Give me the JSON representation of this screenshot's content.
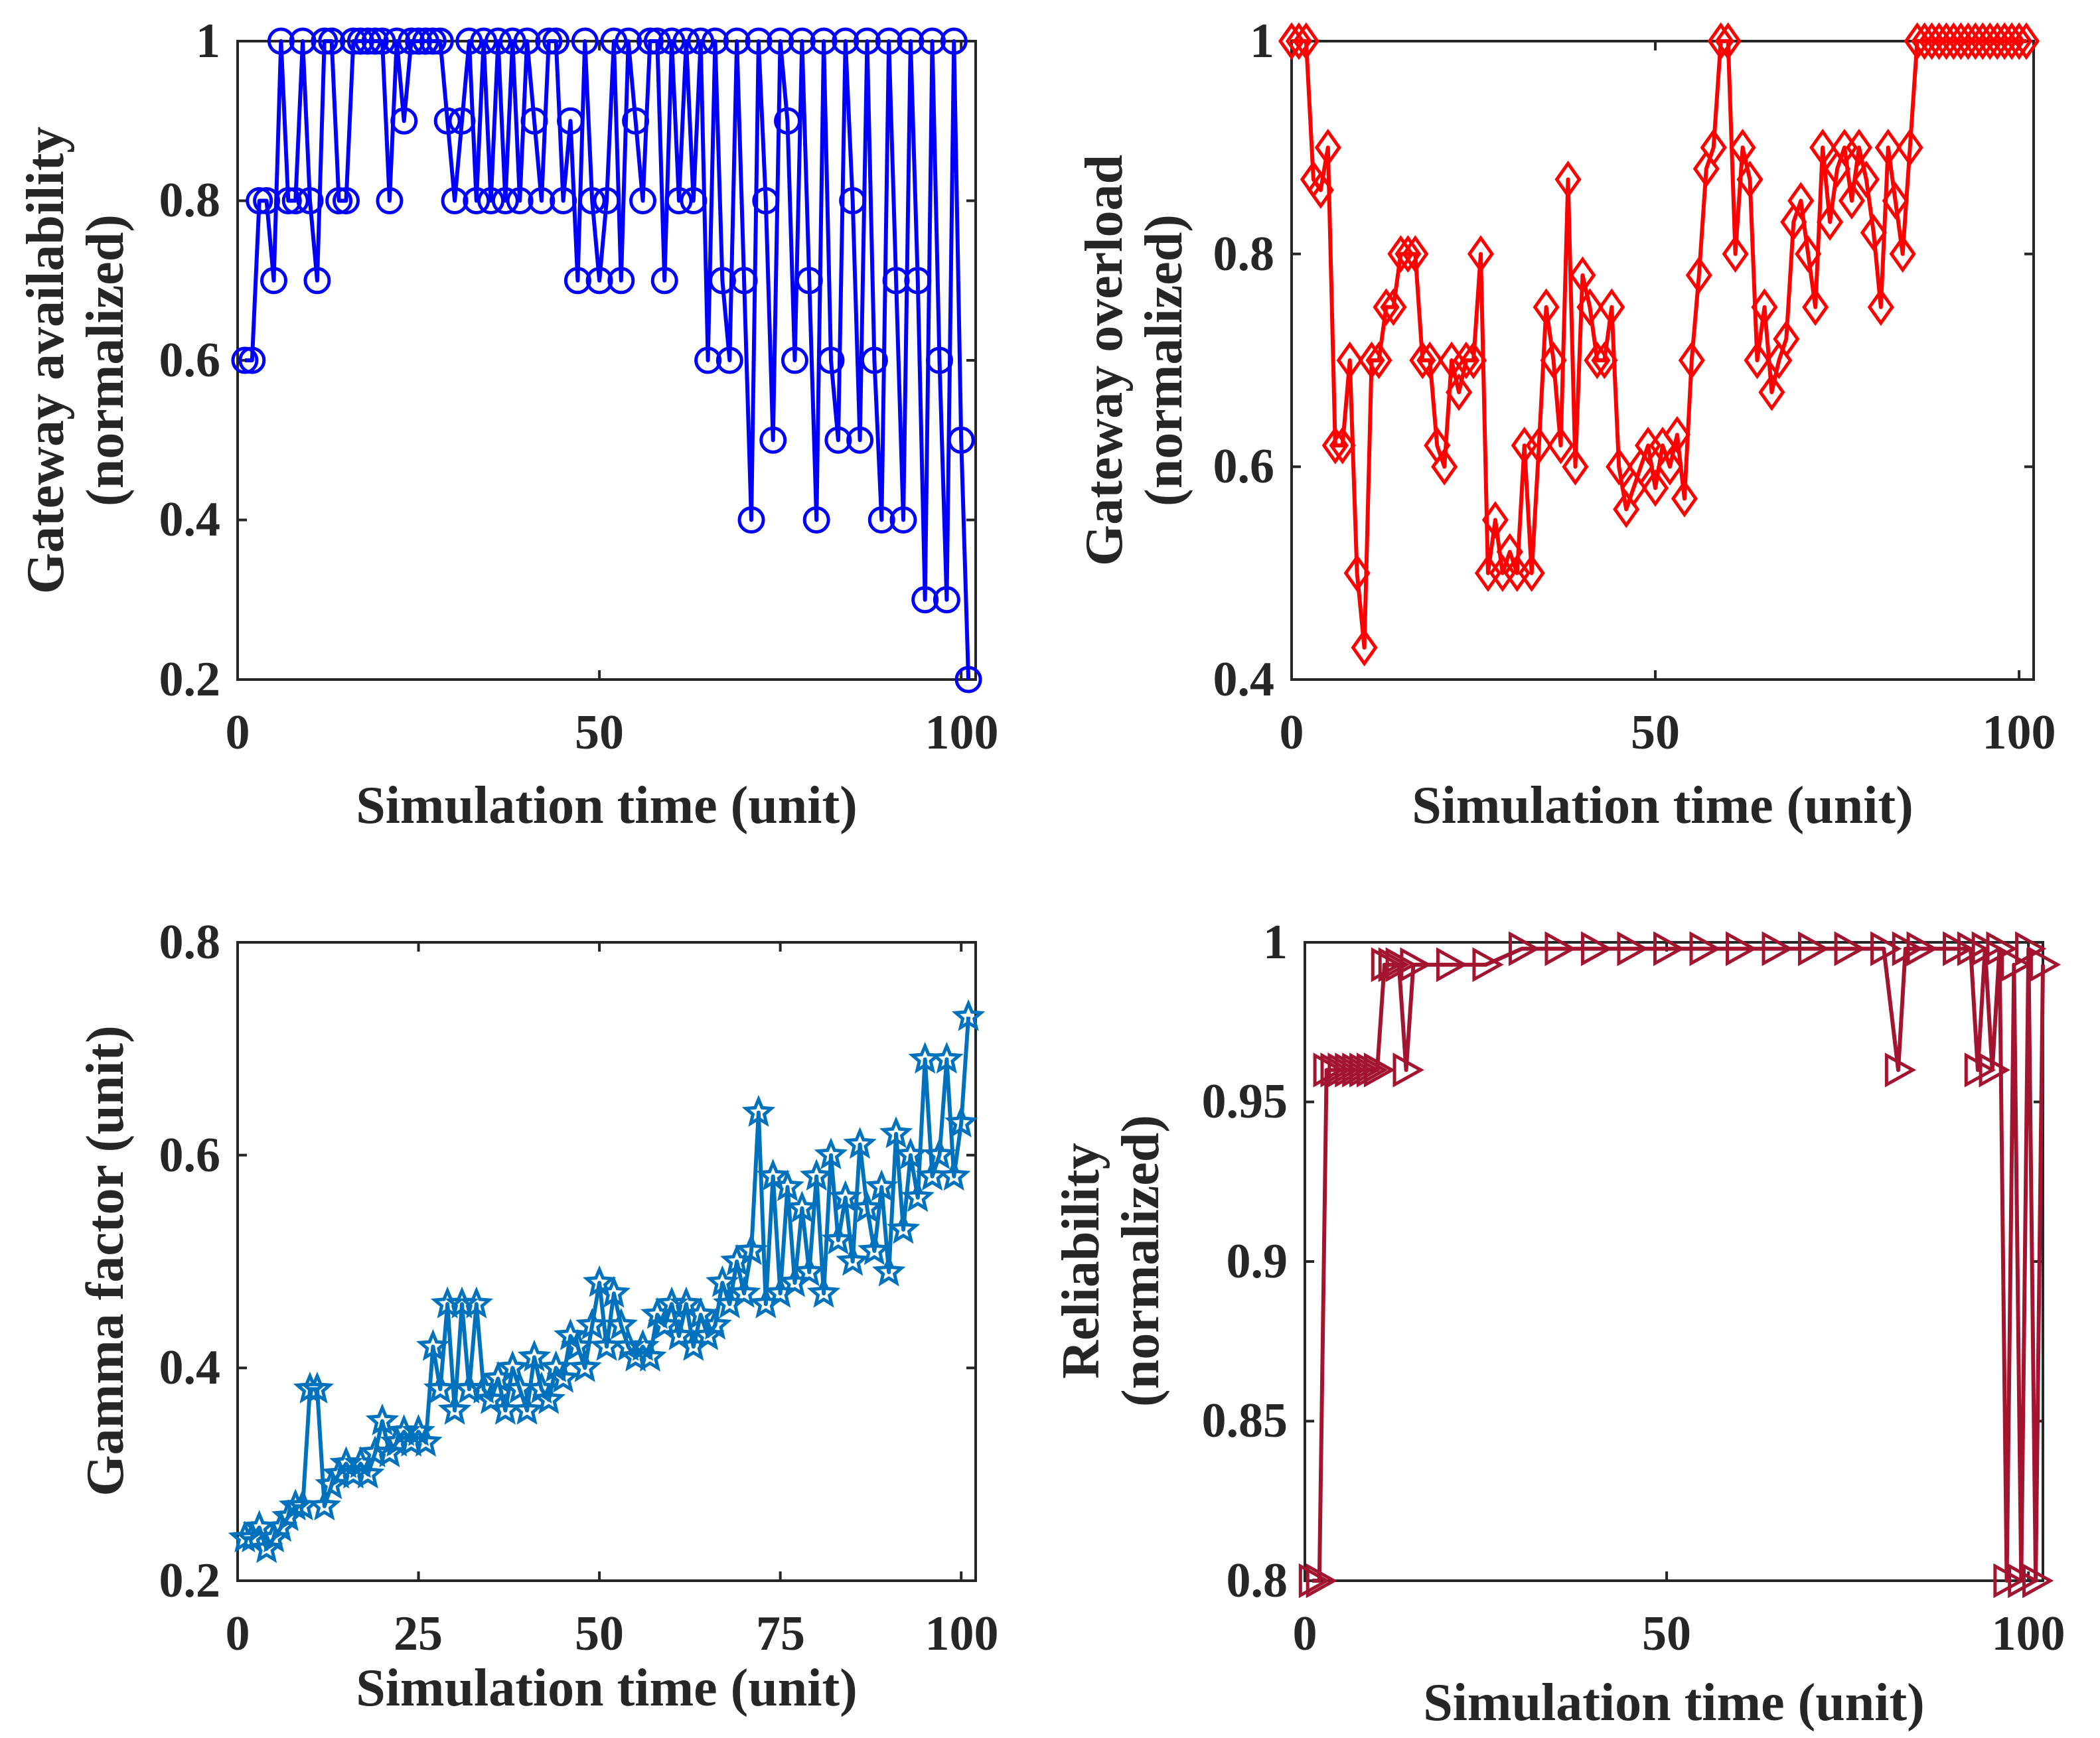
{
  "chart_data": [
    {
      "id": "availability",
      "type": "line",
      "title": "",
      "xlabel": "Simulation time (unit)",
      "ylabel": [
        "Gateway availability",
        "(normalized)"
      ],
      "xlim": [
        0,
        102
      ],
      "ylim": [
        0.2,
        1.0
      ],
      "xticks": [
        0,
        50,
        100
      ],
      "xtick_labels": [
        "0",
        "50",
        "100"
      ],
      "yticks": [
        0.2,
        0.4,
        0.6,
        0.8,
        1.0
      ],
      "ytick_labels": [
        "0.2",
        "0.4",
        "0.6",
        "0.8",
        "1"
      ],
      "grid": false,
      "marker": "circle",
      "color": "#0000ff",
      "series": [
        {
          "name": "Gateway availability",
          "x": [
            1,
            2,
            3,
            4,
            5,
            6,
            7,
            8,
            9,
            10,
            11,
            12,
            13,
            14,
            15,
            16,
            17,
            18,
            19,
            20,
            21,
            22,
            23,
            24,
            25,
            26,
            27,
            28,
            29,
            30,
            31,
            32,
            33,
            34,
            35,
            36,
            37,
            38,
            39,
            40,
            41,
            42,
            43,
            44,
            45,
            46,
            47,
            48,
            49,
            50,
            51,
            52,
            53,
            54,
            55,
            56,
            57,
            58,
            59,
            60,
            61,
            62,
            63,
            64,
            65,
            66,
            67,
            68,
            69,
            70,
            71,
            72,
            73,
            74,
            75,
            76,
            77,
            78,
            79,
            80,
            81,
            82,
            83,
            84,
            85,
            86,
            87,
            88,
            89,
            90,
            91,
            92,
            93,
            94,
            95,
            96,
            97,
            98,
            99,
            100,
            101
          ],
          "values": [
            0.6,
            0.6,
            0.8,
            0.8,
            0.7,
            1,
            0.8,
            0.8,
            1,
            0.8,
            0.7,
            1,
            1,
            0.8,
            0.8,
            1,
            1,
            1,
            1,
            1,
            0.8,
            1,
            0.9,
            1,
            1,
            1,
            1,
            1,
            0.9,
            0.8,
            0.9,
            1,
            0.8,
            1,
            0.8,
            1,
            0.8,
            1,
            0.8,
            1,
            0.9,
            0.8,
            1,
            1,
            0.8,
            0.9,
            0.7,
            1,
            0.8,
            0.7,
            0.8,
            1,
            0.7,
            1,
            0.9,
            0.8,
            1,
            1,
            0.7,
            1,
            0.8,
            1,
            0.8,
            1,
            0.6,
            1,
            0.7,
            0.6,
            1,
            0.7,
            0.4,
            1,
            0.8,
            0.5,
            1,
            0.9,
            0.6,
            1,
            0.7,
            0.4,
            1,
            0.6,
            0.5,
            1,
            0.8,
            0.5,
            1,
            0.6,
            0.4,
            1,
            0.7,
            0.4,
            1,
            0.7,
            0.3,
            1,
            0.6,
            0.3,
            1,
            0.5,
            0.2
          ]
        }
      ]
    },
    {
      "id": "overload",
      "type": "line",
      "title": "",
      "xlabel": "Simulation time (unit)",
      "ylabel": [
        "Gateway overload",
        "(normalized)"
      ],
      "xlim": [
        0,
        102
      ],
      "ylim": [
        0.4,
        1.0
      ],
      "xticks": [
        0,
        50,
        100
      ],
      "xtick_labels": [
        "0",
        "50",
        "100"
      ],
      "yticks": [
        0.4,
        0.6,
        0.8,
        1.0
      ],
      "ytick_labels": [
        "0.4",
        "0.6",
        "0.8",
        "1"
      ],
      "grid": false,
      "marker": "diamond",
      "color": "#ff0000",
      "series": [
        {
          "name": "Gateway overload",
          "x": [
            0,
            1,
            2,
            3,
            4,
            5,
            6,
            7,
            8,
            9,
            10,
            11,
            12,
            13,
            14,
            15,
            16,
            17,
            18,
            19,
            20,
            21,
            22,
            23,
            24,
            25,
            26,
            27,
            28,
            29,
            30,
            31,
            32,
            33,
            34,
            35,
            36,
            37,
            38,
            39,
            40,
            41,
            42,
            43,
            44,
            45,
            46,
            47,
            48,
            49,
            50,
            51,
            52,
            53,
            54,
            55,
            56,
            57,
            58,
            59,
            60,
            61,
            62,
            63,
            64,
            65,
            66,
            67,
            68,
            69,
            70,
            71,
            72,
            73,
            74,
            75,
            76,
            77,
            78,
            79,
            80,
            81,
            82,
            83,
            84,
            85,
            86,
            87,
            88,
            89,
            90,
            91,
            92,
            93,
            94,
            95,
            96,
            97,
            98,
            99,
            100,
            101
          ],
          "values": [
            1,
            1,
            1,
            0.87,
            0.86,
            0.9,
            0.62,
            0.62,
            0.7,
            0.5,
            0.43,
            0.7,
            0.7,
            0.75,
            0.75,
            0.8,
            0.8,
            0.8,
            0.7,
            0.7,
            0.62,
            0.6,
            0.7,
            0.67,
            0.7,
            0.7,
            0.8,
            0.5,
            0.55,
            0.5,
            0.52,
            0.5,
            0.62,
            0.5,
            0.62,
            0.75,
            0.7,
            0.62,
            0.87,
            0.6,
            0.78,
            0.75,
            0.7,
            0.7,
            0.75,
            0.6,
            0.56,
            0.58,
            0.6,
            0.62,
            0.58,
            0.62,
            0.6,
            0.63,
            0.57,
            0.7,
            0.78,
            0.88,
            0.9,
            1,
            1,
            0.8,
            0.9,
            0.87,
            0.7,
            0.75,
            0.67,
            0.7,
            0.72,
            0.83,
            0.85,
            0.8,
            0.75,
            0.9,
            0.83,
            0.88,
            0.9,
            0.85,
            0.9,
            0.87,
            0.82,
            0.75,
            0.9,
            0.85,
            0.8,
            0.9,
            1,
            1,
            1,
            1,
            1,
            1,
            1,
            1,
            1,
            1,
            1,
            1,
            1,
            1,
            1,
            1
          ]
        }
      ]
    },
    {
      "id": "gamma",
      "type": "line",
      "title": "",
      "xlabel": "Simulation time (unit)",
      "ylabel": [
        "Gamma factor (unit)"
      ],
      "xlim": [
        0,
        102
      ],
      "ylim": [
        0.2,
        0.8
      ],
      "xticks": [
        0,
        25,
        50,
        75,
        100
      ],
      "xtick_labels": [
        "0",
        "25",
        "50",
        "75",
        "100"
      ],
      "yticks": [
        0.2,
        0.4,
        0.6,
        0.8
      ],
      "ytick_labels": [
        "0.2",
        "0.4",
        "0.6",
        "0.8"
      ],
      "grid": false,
      "marker": "star",
      "color": "#0072bd",
      "series": [
        {
          "name": "Gamma factor",
          "x": [
            1,
            2,
            3,
            4,
            5,
            6,
            7,
            8,
            9,
            10,
            11,
            12,
            13,
            14,
            15,
            16,
            17,
            18,
            19,
            20,
            21,
            22,
            23,
            24,
            25,
            26,
            27,
            28,
            29,
            30,
            31,
            32,
            33,
            34,
            35,
            36,
            37,
            38,
            39,
            40,
            41,
            42,
            43,
            44,
            45,
            46,
            47,
            48,
            49,
            50,
            51,
            52,
            53,
            54,
            55,
            56,
            57,
            58,
            59,
            60,
            61,
            62,
            63,
            64,
            65,
            66,
            67,
            68,
            69,
            70,
            71,
            72,
            73,
            74,
            75,
            76,
            77,
            78,
            79,
            80,
            81,
            82,
            83,
            84,
            85,
            86,
            87,
            88,
            89,
            90,
            91,
            92,
            93,
            94,
            95,
            96,
            97,
            98,
            99,
            100,
            101
          ],
          "values": [
            0.24,
            0.24,
            0.25,
            0.23,
            0.24,
            0.25,
            0.26,
            0.27,
            0.27,
            0.38,
            0.38,
            0.27,
            0.29,
            0.3,
            0.31,
            0.3,
            0.31,
            0.3,
            0.32,
            0.35,
            0.32,
            0.33,
            0.34,
            0.33,
            0.34,
            0.33,
            0.42,
            0.38,
            0.46,
            0.36,
            0.46,
            0.38,
            0.46,
            0.38,
            0.37,
            0.39,
            0.36,
            0.4,
            0.38,
            0.36,
            0.41,
            0.38,
            0.37,
            0.4,
            0.39,
            0.43,
            0.42,
            0.4,
            0.44,
            0.48,
            0.42,
            0.47,
            0.44,
            0.42,
            0.41,
            0.42,
            0.41,
            0.45,
            0.44,
            0.46,
            0.43,
            0.46,
            0.42,
            0.45,
            0.43,
            0.44,
            0.48,
            0.46,
            0.5,
            0.47,
            0.51,
            0.64,
            0.46,
            0.58,
            0.47,
            0.57,
            0.48,
            0.55,
            0.49,
            0.58,
            0.47,
            0.6,
            0.52,
            0.56,
            0.5,
            0.61,
            0.55,
            0.51,
            0.57,
            0.49,
            0.62,
            0.53,
            0.6,
            0.56,
            0.69,
            0.58,
            0.6,
            0.69,
            0.58,
            0.63,
            0.73
          ]
        }
      ]
    },
    {
      "id": "reliability",
      "type": "line",
      "title": "",
      "xlabel": "Simulation time (unit)",
      "ylabel": [
        "Reliability",
        "(normalized)"
      ],
      "xlim": [
        0,
        102
      ],
      "ylim": [
        0.8,
        1.0
      ],
      "xticks": [
        0,
        50,
        100
      ],
      "xtick_labels": [
        "0",
        "50",
        "100"
      ],
      "yticks": [
        0.8,
        0.85,
        0.9,
        0.95,
        1.0
      ],
      "ytick_labels": [
        "0.8",
        "0.85",
        "0.9",
        "0.95",
        "1"
      ],
      "grid": false,
      "marker": "triangle-right",
      "color": "#a2142f",
      "series": [
        {
          "name": "Reliability",
          "x": [
            1,
            2,
            3,
            4,
            5,
            6,
            7,
            8,
            9,
            10,
            11,
            12,
            13,
            14,
            15,
            20,
            25,
            30,
            35,
            40,
            45,
            50,
            55,
            60,
            65,
            70,
            75,
            80,
            82,
            83,
            85,
            90,
            92,
            93,
            94,
            95,
            96,
            97,
            98,
            99,
            100,
            101,
            102
          ],
          "values": [
            0.8,
            0.8,
            0.96,
            0.96,
            0.96,
            0.96,
            0.96,
            0.96,
            0.96,
            0.96,
            0.993,
            0.993,
            0.993,
            0.96,
            0.993,
            0.993,
            0.993,
            0.998,
            0.998,
            0.998,
            0.998,
            0.998,
            0.998,
            0.998,
            0.998,
            0.998,
            0.998,
            0.998,
            0.96,
            0.998,
            0.998,
            0.998,
            0.998,
            0.96,
            0.998,
            0.96,
            0.998,
            0.8,
            0.993,
            0.8,
            0.998,
            0.8,
            0.993
          ]
        }
      ]
    }
  ]
}
